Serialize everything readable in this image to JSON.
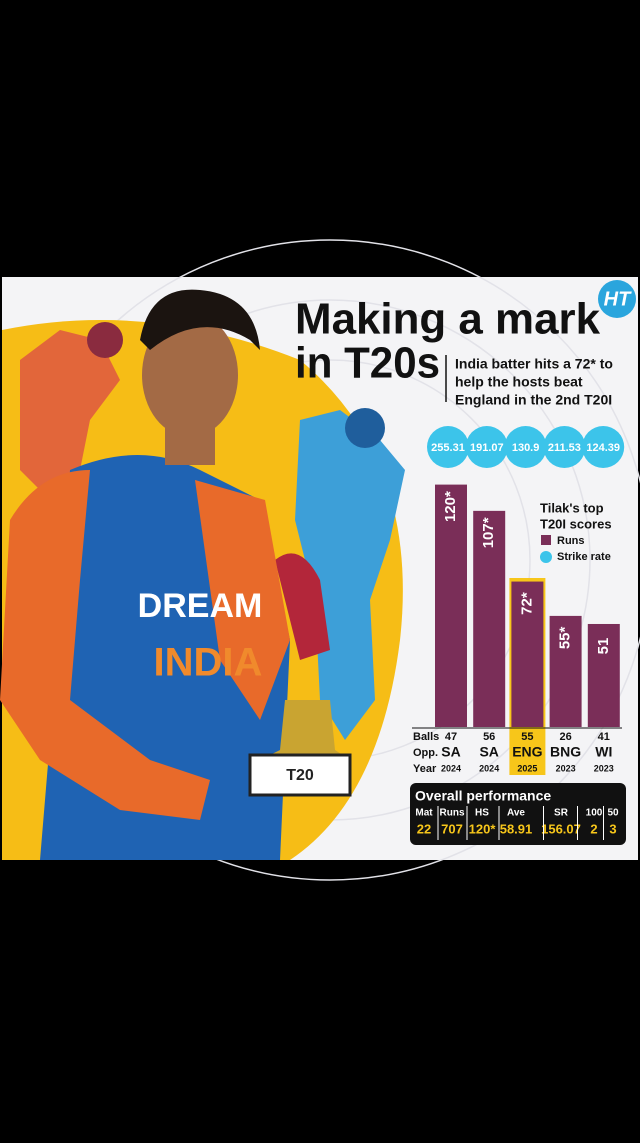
{
  "chart_data": {
    "type": "bar",
    "logo": "HT",
    "title_lines": [
      "Making a mark",
      "in T20s"
    ],
    "subtitle_lines": [
      "India batter hits a 72* to",
      "help the hosts beat",
      "England in the 2nd T20I"
    ],
    "legend_title_lines": [
      "Tilak's top",
      "T20I scores"
    ],
    "categories": [
      "SA",
      "SA",
      "ENG",
      "BNG",
      "WI"
    ],
    "category_label": "Opp.",
    "highlight_index": 2,
    "highlight_color": "#f7c61a",
    "series": [
      {
        "name": "Runs",
        "color": "#7a2e58",
        "values": [
          120,
          107,
          72,
          55,
          51
        ],
        "value_labels": [
          "120*",
          "107*",
          "72*",
          "55*",
          "51"
        ]
      },
      {
        "name": "Strike rate",
        "color": "#3cc4ea",
        "values": [
          255.31,
          191.07,
          130.9,
          211.53,
          124.39
        ]
      }
    ],
    "balls": {
      "label": "Balls",
      "values": [
        47,
        56,
        55,
        26,
        41
      ]
    },
    "year": {
      "label": "Year",
      "values": [
        2024,
        2024,
        2025,
        2023,
        2023
      ]
    },
    "overall": {
      "title": "Overall performance",
      "headers": [
        "Mat",
        "Runs",
        "HS",
        "Ave",
        "SR",
        "100",
        "50"
      ],
      "values": [
        22,
        707,
        "120*",
        58.91,
        156.07,
        2,
        3
      ]
    },
    "photo_texts": [
      "DREAM",
      "INDIA",
      "T20"
    ]
  }
}
